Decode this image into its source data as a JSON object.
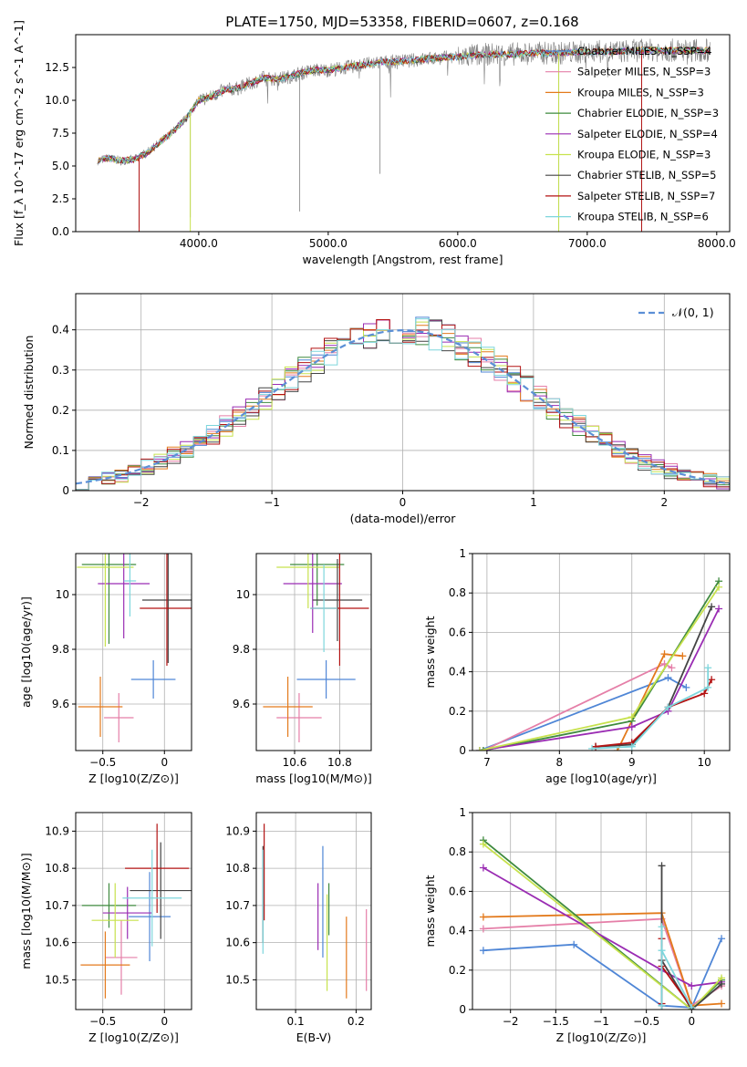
{
  "title": "PLATE=1750, MJD=53358, FIBERID=0607, z=0.168",
  "colors": {
    "chabrier_miles": "#4f86d6",
    "salpeter_miles": "#e57fa8",
    "kroupa_miles": "#e37a1c",
    "chabrier_elodie": "#3e8a3e",
    "salpeter_elodie": "#9a2cb3",
    "kroupa_elodie": "#c7e24d",
    "chabrier_stelib": "#444444",
    "salpeter_stelib": "#b31212",
    "kroupa_stelib": "#7dd6dc",
    "data": "#808080",
    "grid": "#b0b0b0"
  },
  "chart_data": [
    {
      "id": "spectrum",
      "type": "line",
      "title": "PLATE=1750, MJD=53358, FIBERID=0607, z=0.168",
      "xlabel": "wavelength [Angstrom, rest frame]",
      "ylabel": "Flux [f_λ 10^-17 erg cm^-2 s^-1 A^-1]",
      "xlim": [
        3050,
        8100
      ],
      "ylim": [
        0,
        15
      ],
      "xticks": [
        4000,
        5000,
        6000,
        7000,
        8000
      ],
      "yticks": [
        0.0,
        2.5,
        5.0,
        7.5,
        10.0,
        12.5
      ],
      "grid": false,
      "legend_position": "top-right",
      "legend": [
        "Chabrier MILES, N_SSP=4",
        "Salpeter MILES, N_SSP=3",
        "Kroupa MILES, N_SSP=3",
        "Chabrier ELODIE, N_SSP=3",
        "Salpeter ELODIE, N_SSP=4",
        "Kroupa ELODIE, N_SSP=3",
        "Chabrier STELIB, N_SSP=5",
        "Salpeter STELIB, N_SSP=7",
        "Kroupa STELIB, N_SSP=6"
      ],
      "continuum": {
        "x": [
          3220,
          3300,
          3400,
          3500,
          3600,
          3700,
          3800,
          3900,
          4000,
          4100,
          4200,
          4300,
          4400,
          4500,
          4600,
          4700,
          4800,
          4900,
          5000,
          5200,
          5400,
          5600,
          5800,
          6000,
          6200,
          6400,
          6600,
          6800,
          7000,
          7200,
          7400,
          7600,
          7800,
          7950
        ],
        "y": [
          5.4,
          5.6,
          5.4,
          5.5,
          6.0,
          6.8,
          7.6,
          8.6,
          10.0,
          10.3,
          10.8,
          10.9,
          11.3,
          11.7,
          11.6,
          11.8,
          12.1,
          12.3,
          12.3,
          12.6,
          12.9,
          13.0,
          13.2,
          13.3,
          13.5,
          13.5,
          13.6,
          13.6,
          13.7,
          13.7,
          13.8,
          13.8,
          13.8,
          13.8
        ]
      },
      "absorption_features": [
        {
          "x": 3540,
          "depth": 5.4
        },
        {
          "x": 3935,
          "depth": 8.0
        },
        {
          "x": 4780,
          "depth": 10.5
        },
        {
          "x": 5400,
          "depth": 8.5
        },
        {
          "x": 6780,
          "depth": 13.6
        },
        {
          "x": 7420,
          "depth": 13.7
        }
      ]
    },
    {
      "id": "residuals",
      "type": "line",
      "xlabel": "(data-model)/error",
      "ylabel": "Normed distribution",
      "xlim": [
        -2.5,
        2.5
      ],
      "ylim": [
        0,
        0.49
      ],
      "xticks": [
        -2,
        -1,
        0,
        1,
        2
      ],
      "yticks": [
        0.0,
        0.1,
        0.2,
        0.3,
        0.4
      ],
      "grid": true,
      "legend_position": "top-right",
      "legend": [
        "𝒩(0, 1)"
      ],
      "bin_width": 0.1,
      "bin_start": -2.5,
      "gaussian": {
        "mean": 0,
        "sigma": 1
      }
    },
    {
      "id": "age-vs-z",
      "type": "scatter",
      "xlabel": "Z [log10(Z/Z⊙)]",
      "ylabel": "age  [log10(age/yr)]",
      "xlim": [
        -0.72,
        0.22
      ],
      "ylim": [
        9.43,
        10.15
      ],
      "xticks": [
        -0.5,
        0.0
      ],
      "yticks": [
        9.6,
        9.8,
        10.0
      ],
      "grid": true,
      "errorbars": [
        {
          "series": "chabrier_miles",
          "x": -0.09,
          "y": 9.69,
          "xerr": 0.18,
          "yerr": 0.07
        },
        {
          "series": "salpeter_miles",
          "x": -0.37,
          "y": 9.55,
          "xerr": 0.12,
          "yerr": 0.09
        },
        {
          "series": "kroupa_miles",
          "x": -0.52,
          "y": 9.59,
          "xerr": 0.18,
          "yerr": 0.11
        },
        {
          "series": "chabrier_elodie",
          "x": -0.45,
          "y": 10.11,
          "xerr": 0.22,
          "yerr": 0.29
        },
        {
          "series": "salpeter_elodie",
          "x": -0.33,
          "y": 10.04,
          "xerr": 0.21,
          "yerr": 0.2
        },
        {
          "series": "kroupa_elodie",
          "x": -0.48,
          "y": 10.1,
          "xerr": 0.23,
          "yerr": 0.29
        },
        {
          "series": "chabrier_stelib",
          "x": 0.03,
          "y": 9.98,
          "xerr": 0.21,
          "yerr": 0.23
        },
        {
          "series": "salpeter_stelib",
          "x": 0.02,
          "y": 9.95,
          "xerr": 0.22,
          "yerr": 0.21
        },
        {
          "series": "kroupa_stelib",
          "x": -0.28,
          "y": 10.05,
          "xerr": 0.05,
          "yerr": 0.13
        }
      ]
    },
    {
      "id": "age-vs-mass",
      "type": "scatter",
      "xlabel": "mass [log10(M/M⊙)]",
      "ylabel": "",
      "xlim": [
        10.43,
        10.94
      ],
      "ylim": [
        9.43,
        10.15
      ],
      "xticks": [
        10.6,
        10.8
      ],
      "yticks": [
        9.6,
        9.8,
        10.0
      ],
      "grid": true,
      "errorbars": [
        {
          "series": "chabrier_miles",
          "x": 10.74,
          "y": 9.69,
          "xerr": 0.13,
          "yerr": 0.07
        },
        {
          "series": "salpeter_miles",
          "x": 10.62,
          "y": 9.55,
          "xerr": 0.1,
          "yerr": 0.09
        },
        {
          "series": "kroupa_miles",
          "x": 10.57,
          "y": 9.59,
          "xerr": 0.11,
          "yerr": 0.11
        },
        {
          "series": "chabrier_elodie",
          "x": 10.7,
          "y": 10.11,
          "xerr": 0.12,
          "yerr": 0.15
        },
        {
          "series": "salpeter_elodie",
          "x": 10.68,
          "y": 10.04,
          "xerr": 0.13,
          "yerr": 0.18
        },
        {
          "series": "kroupa_elodie",
          "x": 10.66,
          "y": 10.1,
          "xerr": 0.14,
          "yerr": 0.15
        },
        {
          "series": "chabrier_stelib",
          "x": 10.79,
          "y": 9.98,
          "xerr": 0.11,
          "yerr": 0.15
        },
        {
          "series": "salpeter_stelib",
          "x": 10.8,
          "y": 9.95,
          "xerr": 0.13,
          "yerr": 0.21
        },
        {
          "series": "kroupa_stelib",
          "x": 10.73,
          "y": 9.95,
          "xerr": 0.06,
          "yerr": 0.16
        }
      ]
    },
    {
      "id": "massweight-vs-age",
      "type": "line",
      "xlabel": "age  [log10(age/yr)]",
      "ylabel": "mass weight",
      "xlim": [
        6.8,
        10.35
      ],
      "ylim": [
        0,
        1.0
      ],
      "xticks": [
        7,
        8,
        9,
        10
      ],
      "yticks": [
        0.0,
        0.2,
        0.4,
        0.6,
        0.8,
        1.0
      ],
      "grid": true,
      "series": [
        {
          "key": "chabrier_miles",
          "x": [
            6.9,
            9.5,
            9.75
          ],
          "y": [
            0.0,
            0.37,
            0.32
          ]
        },
        {
          "key": "salpeter_miles",
          "x": [
            6.95,
            9.45,
            9.55
          ],
          "y": [
            0.0,
            0.44,
            0.42
          ]
        },
        {
          "key": "kroupa_miles",
          "x": [
            8.8,
            9.45,
            9.7
          ],
          "y": [
            0.0,
            0.49,
            0.48
          ]
        },
        {
          "key": "chabrier_elodie",
          "x": [
            6.95,
            9.0,
            10.2
          ],
          "y": [
            0.0,
            0.15,
            0.86
          ]
        },
        {
          "key": "salpeter_elodie",
          "x": [
            6.9,
            9.0,
            9.5,
            10.2
          ],
          "y": [
            0.0,
            0.12,
            0.2,
            0.72
          ]
        },
        {
          "key": "kroupa_elodie",
          "x": [
            6.9,
            9.0,
            10.2
          ],
          "y": [
            0.0,
            0.17,
            0.83
          ]
        },
        {
          "key": "chabrier_stelib",
          "x": [
            8.5,
            9.0,
            9.5,
            10.1
          ],
          "y": [
            0.02,
            0.03,
            0.22,
            0.73
          ]
        },
        {
          "key": "salpeter_stelib",
          "x": [
            8.5,
            9.0,
            9.5,
            10.0,
            10.1
          ],
          "y": [
            0.02,
            0.04,
            0.22,
            0.29,
            0.36
          ]
        },
        {
          "key": "kroupa_stelib",
          "x": [
            8.45,
            9.0,
            9.5,
            10.05,
            10.05
          ],
          "y": [
            0.01,
            0.02,
            0.22,
            0.32,
            0.42
          ]
        }
      ]
    },
    {
      "id": "mass-vs-z",
      "type": "scatter",
      "xlabel": "Z [log10(Z/Z⊙)]",
      "ylabel": "mass [log10(M/M⊙)]",
      "xlim": [
        -0.72,
        0.22
      ],
      "ylim": [
        10.42,
        10.95
      ],
      "xticks": [
        -0.5,
        0.0
      ],
      "yticks": [
        10.5,
        10.6,
        10.7,
        10.8,
        10.9
      ],
      "grid": true,
      "errorbars": [
        {
          "series": "chabrier_miles",
          "x": -0.12,
          "y": 10.67,
          "xerr": 0.17,
          "yerr": 0.12
        },
        {
          "series": "salpeter_miles",
          "x": -0.35,
          "y": 10.56,
          "xerr": 0.13,
          "yerr": 0.1
        },
        {
          "series": "kroupa_miles",
          "x": -0.48,
          "y": 10.54,
          "xerr": 0.2,
          "yerr": 0.09
        },
        {
          "series": "chabrier_elodie",
          "x": -0.45,
          "y": 10.7,
          "xerr": 0.22,
          "yerr": 0.06
        },
        {
          "series": "salpeter_elodie",
          "x": -0.3,
          "y": 10.68,
          "xerr": 0.2,
          "yerr": 0.07
        },
        {
          "series": "kroupa_elodie",
          "x": -0.4,
          "y": 10.66,
          "xerr": 0.19,
          "yerr": 0.1
        },
        {
          "series": "chabrier_stelib",
          "x": -0.03,
          "y": 10.74,
          "xerr": 0.25,
          "yerr": 0.13
        },
        {
          "series": "salpeter_stelib",
          "x": -0.06,
          "y": 10.8,
          "xerr": 0.26,
          "yerr": 0.12
        },
        {
          "series": "kroupa_stelib",
          "x": -0.1,
          "y": 10.72,
          "xerr": 0.24,
          "yerr": 0.13
        }
      ]
    },
    {
      "id": "mass-vs-ebv",
      "type": "scatter",
      "xlabel": "E(B-V)",
      "ylabel": "",
      "xlim": [
        0.035,
        0.225
      ],
      "ylim": [
        10.42,
        10.95
      ],
      "xticks": [
        0.1,
        0.2
      ],
      "yticks": [
        10.5,
        10.6,
        10.7,
        10.8,
        10.9
      ],
      "grid": true,
      "errorbars": [
        {
          "series": "chabrier_miles",
          "x": 0.145,
          "y": 10.71,
          "xerr": 0,
          "yerr": 0.15
        },
        {
          "series": "salpeter_miles",
          "x": 0.217,
          "y": 10.58,
          "xerr": 0,
          "yerr": 0.11
        },
        {
          "series": "kroupa_miles",
          "x": 0.184,
          "y": 10.56,
          "xerr": 0,
          "yerr": 0.11
        },
        {
          "series": "chabrier_elodie",
          "x": 0.155,
          "y": 10.69,
          "xerr": 0,
          "yerr": 0.07
        },
        {
          "series": "salpeter_elodie",
          "x": 0.137,
          "y": 10.67,
          "xerr": 0,
          "yerr": 0.09
        },
        {
          "series": "kroupa_elodie",
          "x": 0.152,
          "y": 10.6,
          "xerr": 0,
          "yerr": 0.13
        },
        {
          "series": "chabrier_stelib",
          "x": 0.046,
          "y": 10.73,
          "xerr": 0,
          "yerr": 0.13
        },
        {
          "series": "salpeter_stelib",
          "x": 0.048,
          "y": 10.79,
          "xerr": 0,
          "yerr": 0.13
        },
        {
          "series": "kroupa_stelib",
          "x": 0.046,
          "y": 10.71,
          "xerr": 0,
          "yerr": 0.14
        }
      ]
    },
    {
      "id": "massweight-vs-z",
      "type": "line",
      "xlabel": "Z [log10(Z/Z⊙)]",
      "ylabel": "mass weight",
      "xlim": [
        -2.42,
        0.42
      ],
      "ylim": [
        0,
        1.0
      ],
      "xticks": [
        -2.0,
        -1.5,
        -1.0,
        -0.5,
        0.0
      ],
      "yticks": [
        0.0,
        0.2,
        0.4,
        0.6,
        0.8,
        1.0
      ],
      "grid": true,
      "series": [
        {
          "key": "chabrier_miles",
          "x": [
            -2.3,
            -1.3,
            -0.33,
            0.0,
            0.33
          ],
          "y": [
            0.3,
            0.33,
            0.02,
            0.01,
            0.36
          ]
        },
        {
          "key": "salpeter_miles",
          "x": [
            -2.3,
            -0.33,
            0.0,
            0.33
          ],
          "y": [
            0.41,
            0.46,
            0.02,
            0.12
          ]
        },
        {
          "key": "kroupa_miles",
          "x": [
            -2.3,
            -0.33,
            0.0,
            0.33
          ],
          "y": [
            0.47,
            0.49,
            0.02,
            0.03
          ]
        },
        {
          "key": "chabrier_elodie",
          "x": [
            -2.3,
            0.0,
            0.33
          ],
          "y": [
            0.86,
            0.0,
            0.15
          ]
        },
        {
          "key": "salpeter_elodie",
          "x": [
            -2.3,
            -0.33,
            0.0,
            0.33
          ],
          "y": [
            0.72,
            0.2,
            0.12,
            0.14
          ]
        },
        {
          "key": "kroupa_elodie",
          "x": [
            -2.3,
            0.0,
            0.33
          ],
          "y": [
            0.84,
            0.0,
            0.16
          ]
        },
        {
          "key": "chabrier_stelib",
          "x": [
            -0.33,
            -0.33,
            -0.33,
            0.0,
            0.33
          ],
          "y": [
            0.02,
            0.73,
            0.25,
            0.0,
            0.13
          ]
        },
        {
          "key": "salpeter_stelib",
          "x": [
            -0.33,
            -0.33,
            -0.33,
            0.0
          ],
          "y": [
            0.03,
            0.36,
            0.22,
            0.01
          ]
        },
        {
          "key": "kroupa_stelib",
          "x": [
            -0.33,
            -0.33,
            -0.33,
            0.0
          ],
          "y": [
            0.02,
            0.42,
            0.3,
            0.01
          ]
        }
      ]
    }
  ]
}
